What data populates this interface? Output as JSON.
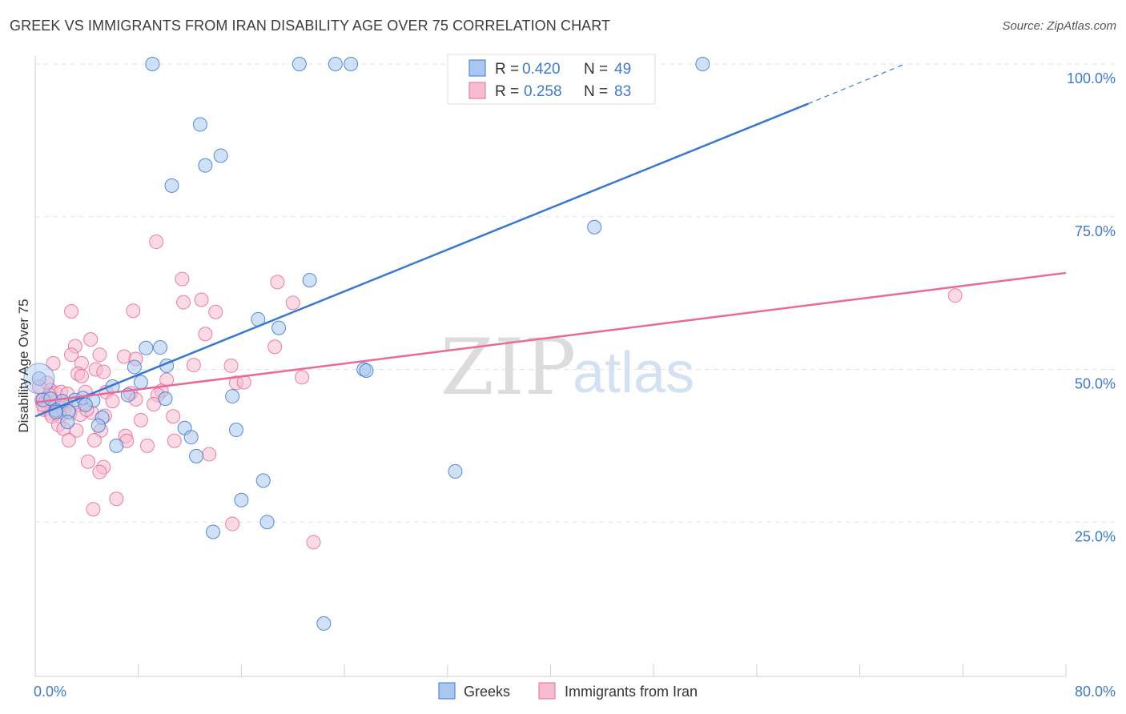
{
  "title": "GREEK VS IMMIGRANTS FROM IRAN DISABILITY AGE OVER 75 CORRELATION CHART",
  "source": "Source: ZipAtlas.com",
  "watermark": {
    "part1": "ZIP",
    "part2": "atlas"
  },
  "colors": {
    "blue": "#3a78d0",
    "blue_fill": "#aac8ef",
    "pink": "#e8699a",
    "pink_fill": "#f6bcd0",
    "tick_text": "#3f79c9",
    "grid": "#e3e3e3"
  },
  "legend": {
    "rows": [
      {
        "r_label": "R = ",
        "r_value": "0.420",
        "n_label": "N = ",
        "n_value": "49"
      },
      {
        "r_label": "R = ",
        "r_value": "0.258",
        "n_label": "N = ",
        "n_value": "83"
      }
    ]
  },
  "bottom_legend": [
    "Greeks",
    "Immigrants from Iran"
  ],
  "chart_data": {
    "type": "scatter",
    "xlabel": "",
    "ylabel": "Disability Age Over 75",
    "xlim": [
      0,
      80
    ],
    "ylim": [
      0,
      100
    ],
    "x_tick_labels": [
      "0.0%",
      "80.0%"
    ],
    "y_tick_labels": [
      "25.0%",
      "50.0%",
      "75.0%",
      "100.0%"
    ],
    "y_ticks": [
      25,
      50,
      75,
      100
    ],
    "series": [
      {
        "name": "Greeks",
        "color": "blue",
        "R": 0.42,
        "N": 49,
        "trend": {
          "x0": 0,
          "y0": 42.3,
          "x1": 60,
          "y1": 93.5,
          "dash_x1": 67.5,
          "dash_y1": 100
        },
        "points": [
          [
            9.1,
            100
          ],
          [
            20.5,
            100
          ],
          [
            23.3,
            100
          ],
          [
            24.5,
            100
          ],
          [
            51.8,
            100
          ],
          [
            12.8,
            90.1
          ],
          [
            14.4,
            85.0
          ],
          [
            13.2,
            83.4
          ],
          [
            10.6,
            80.1
          ],
          [
            43.4,
            73.3
          ],
          [
            21.3,
            64.6
          ],
          [
            17.3,
            58.2
          ],
          [
            18.9,
            56.8
          ],
          [
            8.6,
            53.5
          ],
          [
            9.7,
            53.6
          ],
          [
            10.2,
            50.6
          ],
          [
            7.7,
            50.4
          ],
          [
            25.5,
            50.0
          ],
          [
            25.7,
            49.8
          ],
          [
            8.2,
            47.9
          ],
          [
            6.0,
            47.2
          ],
          [
            7.2,
            45.8
          ],
          [
            0.3,
            48.5
          ],
          [
            0.6,
            45.0
          ],
          [
            1.2,
            45.2
          ],
          [
            2.1,
            44.8
          ],
          [
            3.1,
            45.0
          ],
          [
            3.7,
            45.3
          ],
          [
            4.5,
            44.9
          ],
          [
            1.6,
            43.3
          ],
          [
            2.6,
            43.1
          ],
          [
            3.9,
            44.2
          ],
          [
            5.2,
            42.1
          ],
          [
            10.1,
            45.2
          ],
          [
            15.3,
            45.6
          ],
          [
            1.6,
            43.0
          ],
          [
            2.5,
            41.4
          ],
          [
            4.9,
            40.8
          ],
          [
            11.6,
            40.4
          ],
          [
            12.1,
            38.9
          ],
          [
            15.6,
            40.1
          ],
          [
            6.3,
            37.5
          ],
          [
            12.5,
            35.8
          ],
          [
            32.6,
            33.3
          ],
          [
            17.7,
            31.8
          ],
          [
            16.0,
            28.6
          ],
          [
            18.0,
            25.0
          ],
          [
            13.8,
            23.4
          ],
          [
            22.4,
            8.4
          ]
        ]
      },
      {
        "name": "Immigrants from Iran",
        "color": "pink",
        "R": 0.258,
        "N": 83,
        "trend": {
          "x0": 0,
          "y0": 44.6,
          "x1": 80,
          "y1": 65.8
        },
        "points": [
          [
            9.4,
            70.9
          ],
          [
            11.4,
            64.8
          ],
          [
            18.8,
            64.3
          ],
          [
            12.9,
            61.4
          ],
          [
            11.5,
            61.0
          ],
          [
            20.0,
            60.9
          ],
          [
            71.4,
            62.1
          ],
          [
            7.6,
            59.6
          ],
          [
            2.8,
            59.5
          ],
          [
            14.0,
            59.4
          ],
          [
            13.2,
            55.8
          ],
          [
            4.3,
            54.9
          ],
          [
            18.6,
            53.7
          ],
          [
            3.1,
            53.8
          ],
          [
            5.0,
            52.4
          ],
          [
            2.8,
            52.4
          ],
          [
            6.9,
            52.1
          ],
          [
            12.3,
            50.7
          ],
          [
            15.2,
            50.6
          ],
          [
            7.8,
            51.7
          ],
          [
            3.6,
            51.0
          ],
          [
            1.4,
            51.0
          ],
          [
            4.7,
            50.0
          ],
          [
            5.3,
            49.6
          ],
          [
            3.3,
            49.3
          ],
          [
            3.6,
            48.9
          ],
          [
            20.7,
            48.7
          ],
          [
            10.2,
            48.3
          ],
          [
            15.6,
            47.8
          ],
          [
            16.2,
            47.9
          ],
          [
            0.9,
            47.8
          ],
          [
            0.3,
            47.2
          ],
          [
            1.2,
            46.6
          ],
          [
            1.6,
            46.1
          ],
          [
            2.0,
            46.3
          ],
          [
            5.5,
            46.3
          ],
          [
            9.8,
            46.5
          ],
          [
            7.4,
            46.1
          ],
          [
            9.5,
            45.8
          ],
          [
            7.8,
            45.1
          ],
          [
            0.5,
            45.0
          ],
          [
            0.8,
            44.8
          ],
          [
            1.4,
            44.6
          ],
          [
            2.4,
            44.3
          ],
          [
            3.4,
            44.2
          ],
          [
            1.0,
            44.0
          ],
          [
            2.0,
            43.7
          ],
          [
            2.2,
            43.0
          ],
          [
            0.7,
            43.4
          ],
          [
            1.2,
            42.8
          ],
          [
            2.7,
            42.8
          ],
          [
            3.5,
            42.6
          ],
          [
            4.4,
            42.9
          ],
          [
            5.4,
            42.4
          ],
          [
            1.9,
            42.4
          ],
          [
            1.3,
            42.3
          ],
          [
            8.2,
            41.7
          ],
          [
            10.7,
            42.3
          ],
          [
            1.8,
            40.9
          ],
          [
            2.2,
            40.3
          ],
          [
            3.2,
            40.0
          ],
          [
            5.1,
            40.0
          ],
          [
            7.0,
            39.1
          ],
          [
            7.1,
            38.3
          ],
          [
            10.8,
            38.3
          ],
          [
            2.6,
            38.4
          ],
          [
            4.6,
            38.4
          ],
          [
            8.7,
            37.5
          ],
          [
            13.5,
            36.1
          ],
          [
            4.1,
            34.9
          ],
          [
            5.3,
            34.0
          ],
          [
            5.0,
            33.2
          ],
          [
            6.3,
            28.8
          ],
          [
            4.5,
            27.1
          ],
          [
            15.3,
            24.7
          ],
          [
            21.6,
            21.7
          ],
          [
            9.2,
            44.3
          ],
          [
            6.0,
            44.8
          ],
          [
            3.9,
            46.3
          ],
          [
            0.6,
            44.2
          ],
          [
            2.5,
            46.0
          ],
          [
            1.1,
            45.8
          ],
          [
            4.0,
            43.4
          ]
        ]
      }
    ]
  }
}
